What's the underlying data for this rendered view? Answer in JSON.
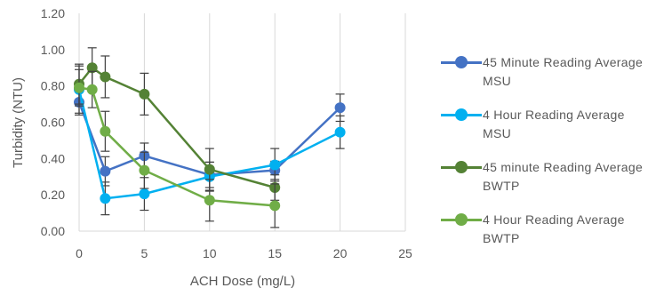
{
  "chart_data": {
    "type": "line",
    "xlabel": "ACH Dose (mg/L)",
    "ylabel": "Turbidity (NTU)",
    "xlim": [
      0,
      25
    ],
    "ylim": [
      0,
      1.2
    ],
    "x_ticks": [
      "0",
      "5",
      "10",
      "15",
      "20",
      "25"
    ],
    "y_ticks": [
      "0.00",
      "0.20",
      "0.40",
      "0.60",
      "0.80",
      "1.00",
      "1.20"
    ],
    "grid": "vertical",
    "legend_position": "right",
    "error_bars": true,
    "series": [
      {
        "name": "45 Minute Reading Average MSU",
        "color": "#4472C4",
        "x": [
          0,
          2,
          5,
          10,
          15,
          20
        ],
        "y": [
          0.71,
          0.33,
          0.415,
          0.31,
          0.335,
          0.68
        ],
        "err": [
          0.07,
          0.08,
          0.07,
          0.07,
          0.05,
          0.075
        ]
      },
      {
        "name": "4 Hour Reading Average MSU",
        "color": "#00B0F0",
        "x": [
          0,
          2,
          5,
          10,
          15,
          20
        ],
        "y": [
          0.78,
          0.18,
          0.205,
          0.3,
          0.365,
          0.545
        ],
        "err": [
          0.13,
          0.09,
          0.09,
          0.08,
          0.09,
          0.09
        ]
      },
      {
        "name": "45 minute Reading Average BWTP",
        "color": "#548235",
        "x": [
          0,
          1,
          2,
          5,
          10,
          15
        ],
        "y": [
          0.81,
          0.9,
          0.85,
          0.755,
          0.34,
          0.24
        ],
        "err": [
          0.11,
          0.11,
          0.115,
          0.115,
          0.115,
          0.07
        ]
      },
      {
        "name": "4 Hour Reading Average BWTP",
        "color": "#70AD47",
        "x": [
          0,
          1,
          2,
          5,
          10,
          15
        ],
        "y": [
          0.79,
          0.78,
          0.55,
          0.335,
          0.17,
          0.14
        ],
        "err": [
          0.1,
          0.1,
          0.11,
          0.1,
          0.115,
          0.12
        ]
      }
    ]
  }
}
